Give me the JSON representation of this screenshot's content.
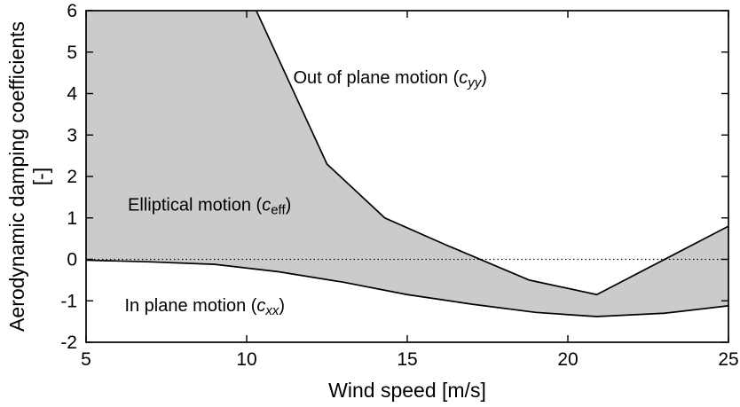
{
  "figure": {
    "background": "#ffffff",
    "frame_color": "#000000",
    "line_color": "#000000",
    "fill_color": "#cbcbcb"
  },
  "chart_data": {
    "type": "area",
    "title": "",
    "xlabel": "Wind speed [m/s]",
    "ylabel": "Aerodynamic damping coefficients [-]",
    "ylabel_line1": "Aerodynamic damping coefficients",
    "ylabel_line2": "[-]",
    "xlim": [
      5,
      25
    ],
    "ylim": [
      -2,
      6
    ],
    "xticks": [
      "5",
      "10",
      "15",
      "20",
      "25"
    ],
    "yticks": [
      "-2",
      "-1",
      "0",
      "1",
      "2",
      "3",
      "4",
      "5",
      "6"
    ],
    "grid": false,
    "zero_line_y": 0,
    "series": [
      {
        "name": "Out of plane motion (c_yy)",
        "x": [
          5,
          8,
          10.3,
          12.5,
          14.3,
          16.2,
          18.8,
          20.9,
          25
        ],
        "y": [
          40,
          14,
          6.0,
          2.3,
          1.0,
          0.35,
          -0.5,
          -0.85,
          0.8
        ]
      },
      {
        "name": "In plane motion (c_xx)",
        "x": [
          5,
          7,
          9,
          11,
          13,
          15,
          17,
          19,
          20.9,
          23,
          25
        ],
        "y": [
          -0.02,
          -0.06,
          -0.12,
          -0.3,
          -0.55,
          -0.85,
          -1.08,
          -1.28,
          -1.38,
          -1.3,
          -1.12
        ]
      }
    ],
    "shaded_region_label": "Elliptical motion (c_eff)",
    "annotations": [
      {
        "name": "out-of-plane",
        "pre": "Out of plane motion (",
        "var": "c",
        "sub": "yy",
        "post": ")",
        "sub_italic": true,
        "x": 11.45,
        "y": 4.25
      },
      {
        "name": "elliptical",
        "pre": "Elliptical motion (",
        "var": "c",
        "sub": "eff",
        "post": ")",
        "sub_italic": false,
        "x": 6.3,
        "y": 1.18
      },
      {
        "name": "in-plane",
        "pre": "In plane motion (",
        "var": "c",
        "sub": "xx",
        "post": ")",
        "sub_italic": true,
        "x": 6.2,
        "y": -1.25
      }
    ]
  }
}
